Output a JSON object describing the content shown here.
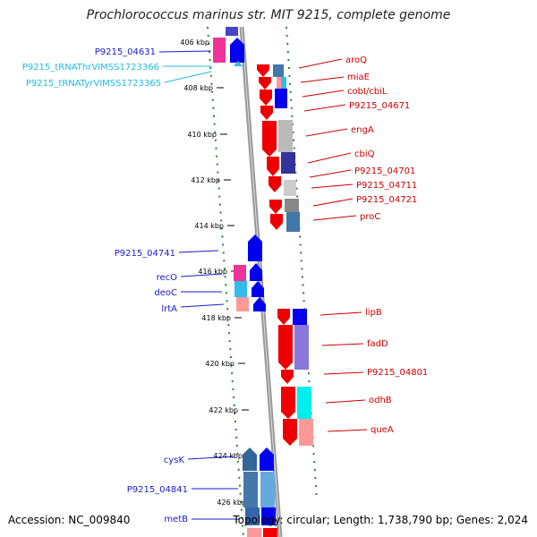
{
  "title": "Prochlorococcus marinus str. MIT 9215, complete genome",
  "footer": {
    "accession": "Accession: NC_009840",
    "summary": "Topology: circular; Length: 1,738,790 bp; Genes: 2,024"
  },
  "colors": {
    "forward_label": "#1a1acc",
    "reverse_label": "#cc0000",
    "rna_label": "#22bbdd",
    "axis": "#999999",
    "ticks": "#228822"
  },
  "ticks": [
    "406 kbp",
    "408 kbp",
    "410 kbp",
    "412 kbp",
    "414 kbp",
    "416 kbp",
    "418 kbp",
    "420 kbp",
    "422 kbp",
    "424 kbp",
    "426 kbp"
  ],
  "left_labels": [
    {
      "text": "P9215_04631",
      "type": "forward"
    },
    {
      "text": "P9215_tRNAThrVIMSS1723366",
      "type": "rna"
    },
    {
      "text": "P9215_tRNATyrVIMSS1723365",
      "type": "rna"
    },
    {
      "text": "P9215_04741",
      "type": "forward"
    },
    {
      "text": "recO",
      "type": "forward"
    },
    {
      "text": "deoC",
      "type": "forward"
    },
    {
      "text": "lrtA",
      "type": "forward"
    },
    {
      "text": "cysK",
      "type": "forward"
    },
    {
      "text": "P9215_04841",
      "type": "forward"
    },
    {
      "text": "metB",
      "type": "forward"
    }
  ],
  "right_labels": [
    {
      "text": "aroQ"
    },
    {
      "text": "miaE"
    },
    {
      "text": "cobI/cbiL"
    },
    {
      "text": "P9215_04671"
    },
    {
      "text": "engA"
    },
    {
      "text": "cbiQ"
    },
    {
      "text": "P9215_04701"
    },
    {
      "text": "P9215_04711"
    },
    {
      "text": "P9215_04721"
    },
    {
      "text": "proC"
    },
    {
      "text": "lipB"
    },
    {
      "text": "fadD"
    },
    {
      "text": "P9215_04801"
    },
    {
      "text": "odhB"
    },
    {
      "text": "queA"
    }
  ]
}
